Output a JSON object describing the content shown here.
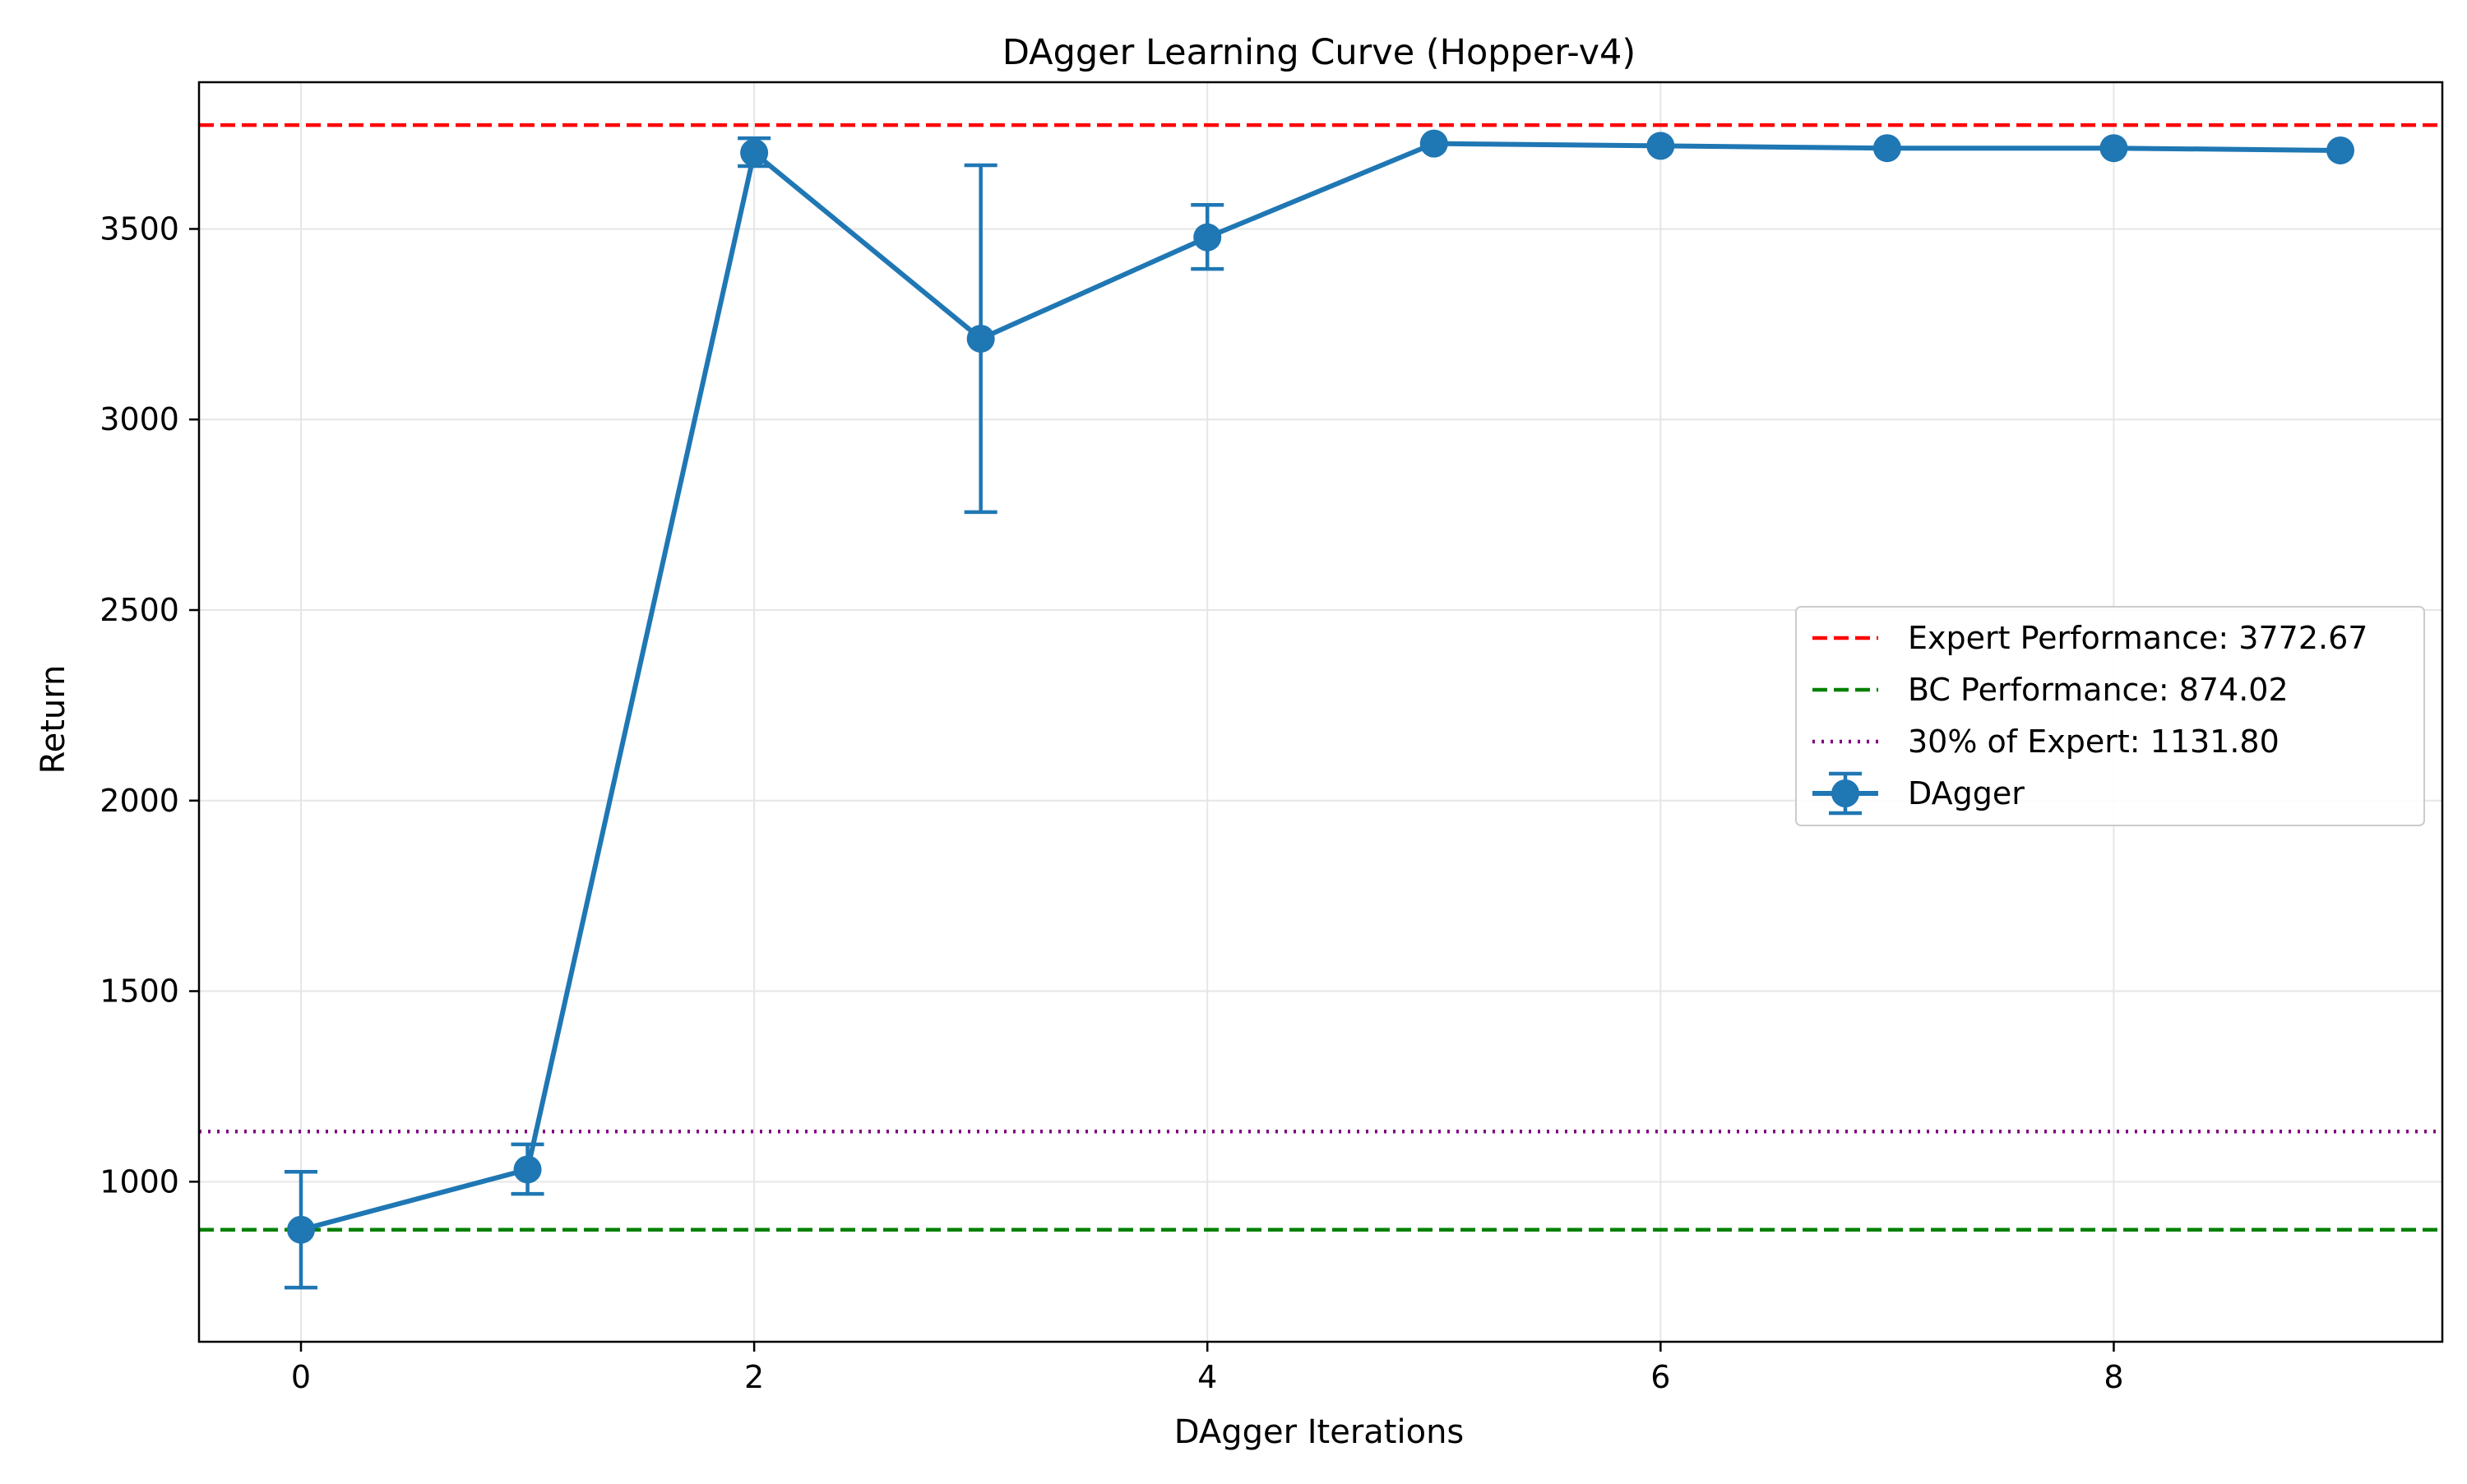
{
  "chart_data": {
    "type": "line",
    "title": "DAgger Learning Curve (Hopper-v4)",
    "xlabel": "DAgger Iterations",
    "ylabel": "Return",
    "xlim": [
      -0.45,
      9.45
    ],
    "ylim": [
      580,
      3885
    ],
    "x_ticks": [
      0,
      2,
      4,
      6,
      8
    ],
    "y_ticks": [
      1000,
      1500,
      2000,
      2500,
      3000,
      3500
    ],
    "grid": true,
    "legend_position": "center-right",
    "series": [
      {
        "name": "DAgger",
        "color": "#1f77b4",
        "x": [
          0,
          1,
          2,
          3,
          4,
          5,
          6,
          7,
          8,
          9
        ],
        "y": [
          874,
          1032,
          3700,
          3212,
          3478,
          3724,
          3718,
          3712,
          3712,
          3706
        ],
        "err_low": [
          722,
          968,
          3665,
          2757,
          3395,
          3724,
          3718,
          3712,
          3712,
          3706
        ],
        "err_high": [
          1026,
          1098,
          3738,
          3667,
          3563,
          3724,
          3718,
          3712,
          3712,
          3706
        ]
      }
    ],
    "reference_lines": [
      {
        "name": "Expert Performance: 3772.67",
        "value": 3772.67,
        "color": "#ff0000",
        "style": "dashed"
      },
      {
        "name": "BC Performance: 874.02",
        "value": 874.02,
        "color": "#008000",
        "style": "dashed"
      },
      {
        "name": "30% of Expert: 1131.80",
        "value": 1131.8,
        "color": "#800080",
        "style": "dotted"
      }
    ]
  }
}
